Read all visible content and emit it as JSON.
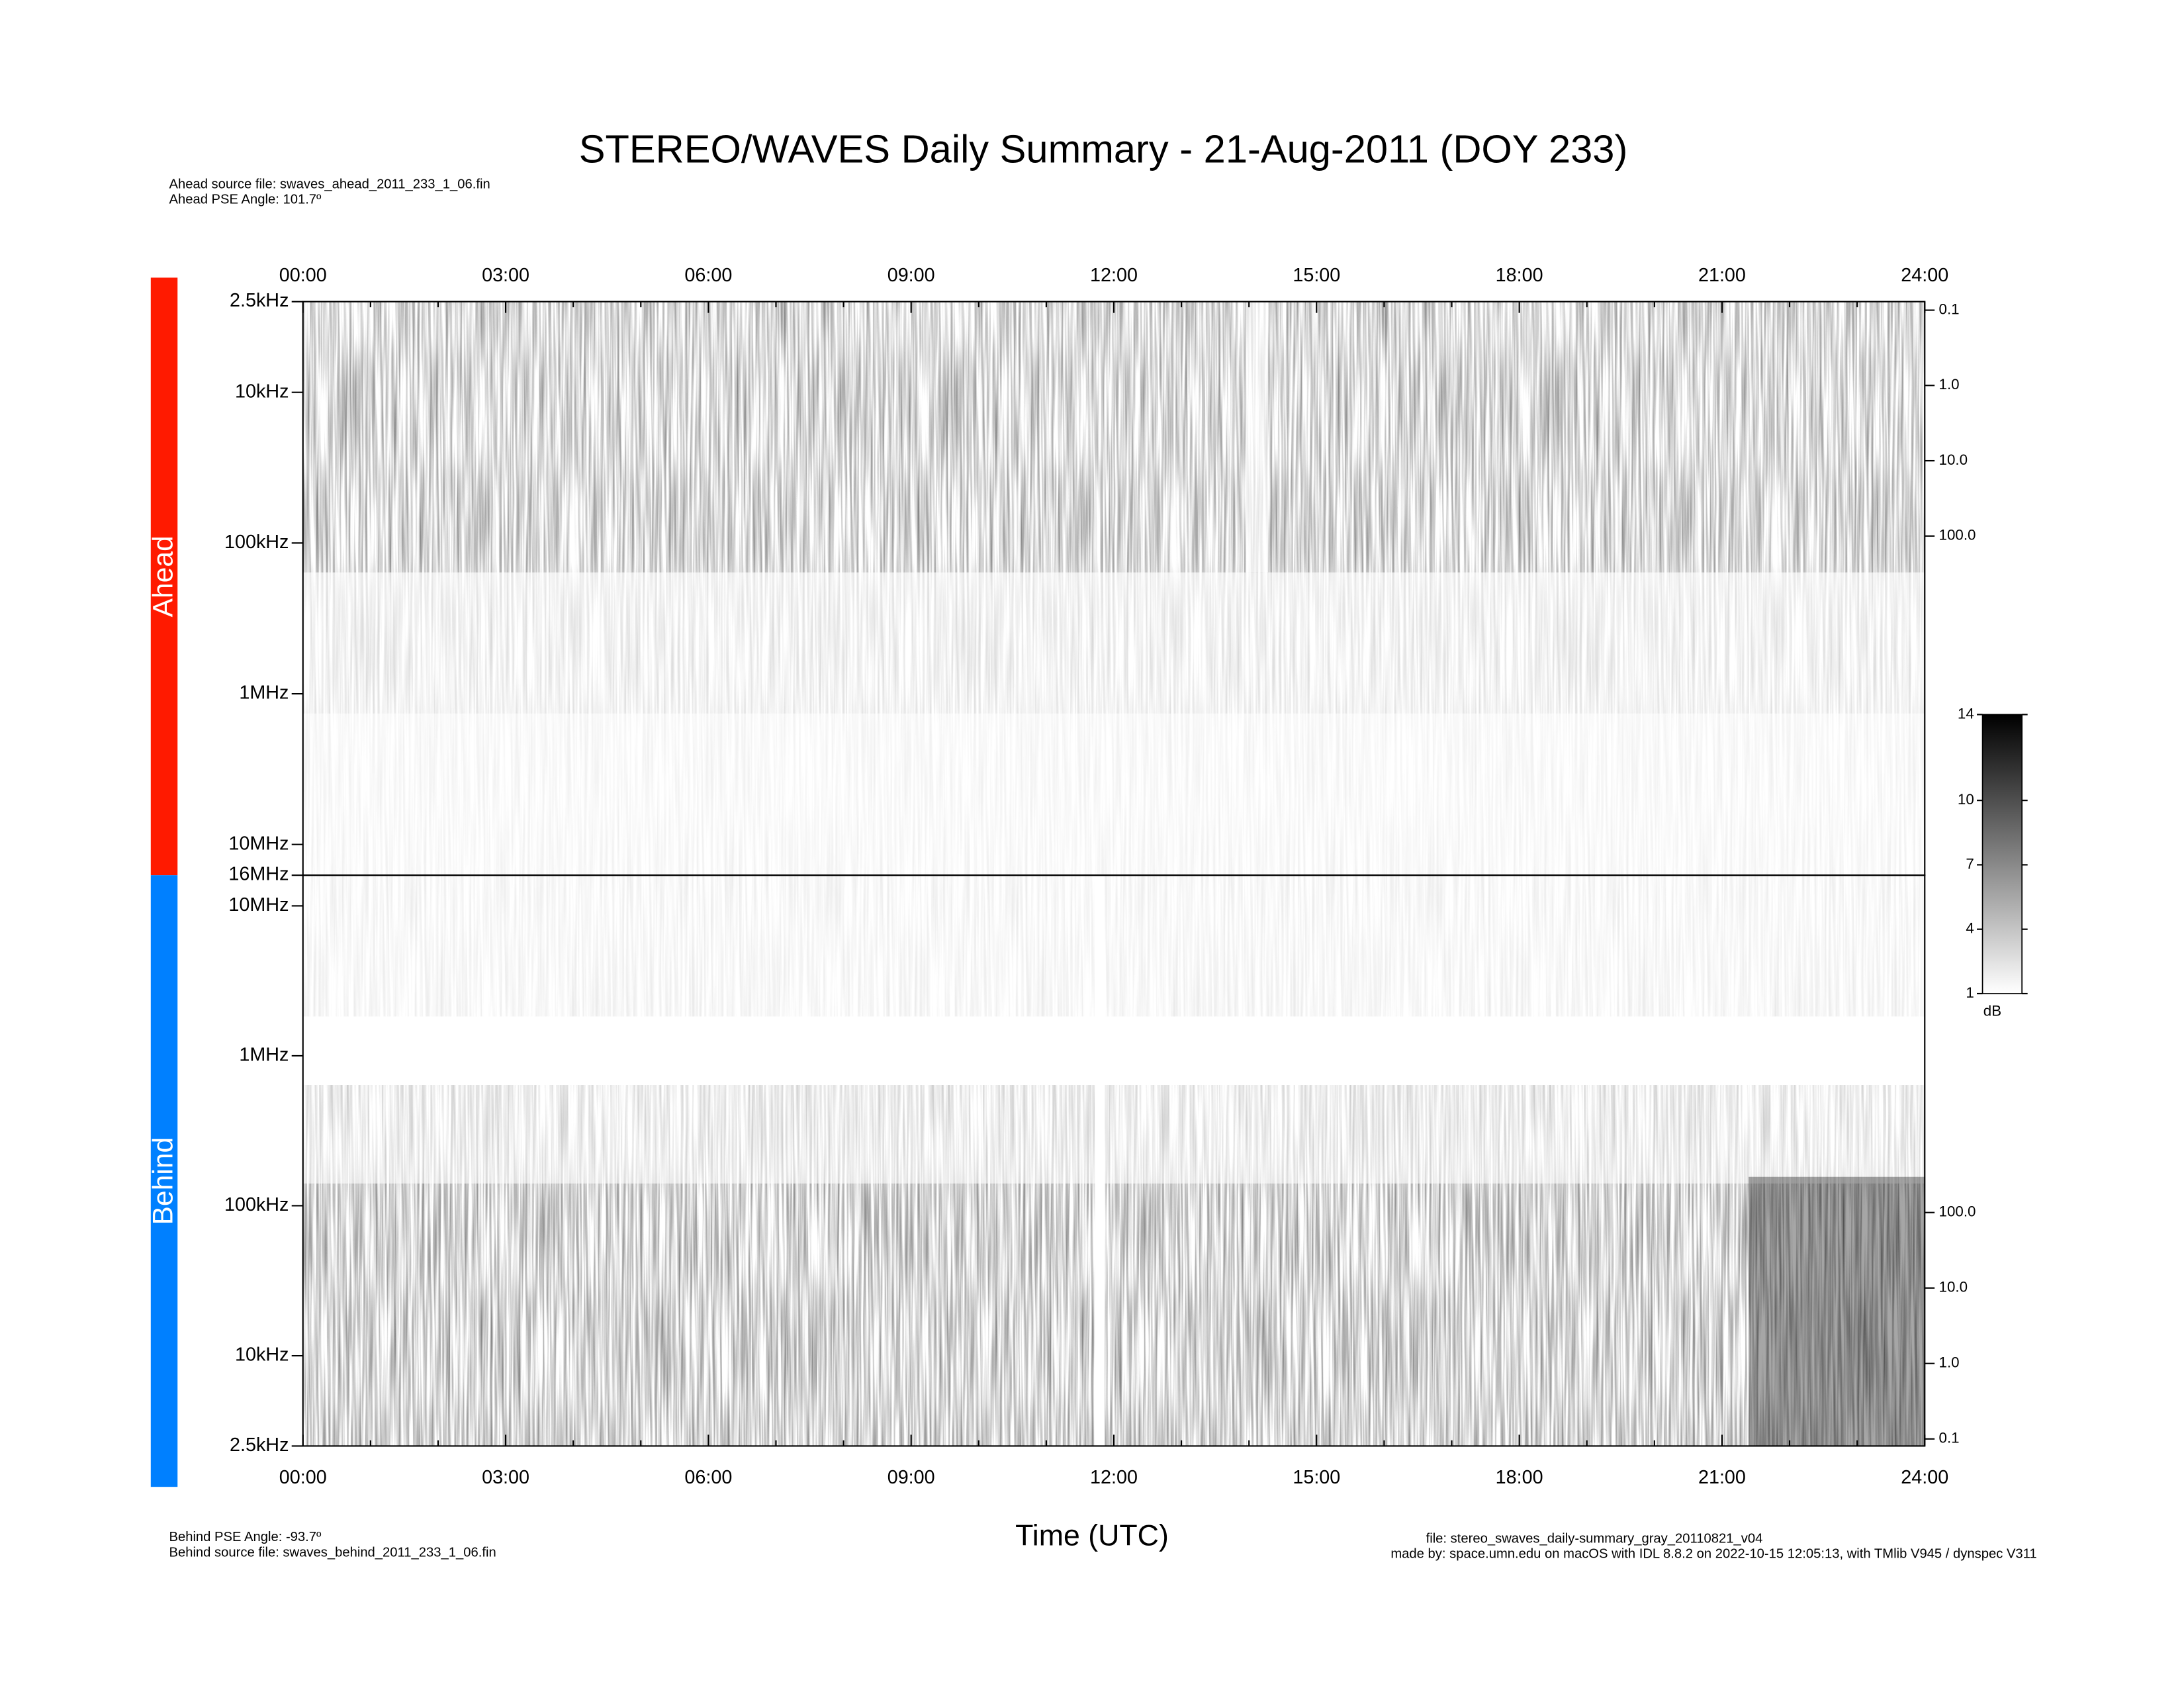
{
  "chart_data": {
    "type": "spectrogram",
    "title": "STEREO/WAVES Daily Summary - 21-Aug-2011 (DOY 233)",
    "ahead_source": "Ahead source file: swaves_ahead_2011_233_1_06.fin",
    "ahead_angle": "Ahead PSE Angle:  101.7º",
    "behind_angle": "Behind PSE Angle:  -93.7º",
    "behind_source": "Behind source file: swaves_behind_2011_233_1_06.fin",
    "xlabel": "Time (UTC)",
    "file_note": "file: stereo_swaves_daily-summary_gray_20110821_v04",
    "made_by": "made by: space.umn.edu on macOS with IDL 8.8.2 on 2022-10-15 12:05:13, with TMlib V945 / dynspec V311",
    "xlim": [
      0,
      24
    ],
    "xticks": [
      {
        "value": 0,
        "label": "00:00"
      },
      {
        "value": 3,
        "label": "03:00"
      },
      {
        "value": 6,
        "label": "06:00"
      },
      {
        "value": 9,
        "label": "09:00"
      },
      {
        "value": 12,
        "label": "12:00"
      },
      {
        "value": 15,
        "label": "15:00"
      },
      {
        "value": 18,
        "label": "18:00"
      },
      {
        "value": 21,
        "label": "21:00"
      },
      {
        "value": 24,
        "label": "24:00"
      }
    ],
    "xminor_ticks": [
      1,
      2,
      4,
      5,
      7,
      8,
      10,
      11,
      13,
      14,
      16,
      17,
      19,
      20,
      22,
      23
    ],
    "log_y": true,
    "panels": [
      {
        "name": "Ahead",
        "color": "#ff1a00",
        "ylim": [
          2.5,
          16000
        ],
        "yticks": [
          {
            "value": 2.5,
            "label": "2.5kHz"
          },
          {
            "value": 10,
            "label": "10kHz"
          },
          {
            "value": 100,
            "label": "100kHz"
          },
          {
            "value": 1000,
            "label": "1MHz"
          },
          {
            "value": 10000,
            "label": "10MHz"
          },
          {
            "value": 16000,
            "label": "16MHz"
          }
        ],
        "y2lim": [
          0.077,
          3200000
        ],
        "y2ticks": [
          0.1,
          {
            "value": 1,
            "label": "1.0"
          },
          {
            "value": 10,
            "label": "10.0"
          },
          {
            "value": 100,
            "label": "100.0"
          }
        ]
      },
      {
        "name": "Behind",
        "color": "#0080ff",
        "ylim": [
          16000,
          2.5
        ],
        "yticks": [
          {
            "value": 2.5,
            "label": "2.5kHz"
          },
          {
            "value": 10,
            "label": "10kHz"
          },
          {
            "value": 100,
            "label": "100kHz"
          },
          {
            "value": 1000,
            "label": "1MHz"
          },
          {
            "value": 10000,
            "label": "10MHz"
          }
        ],
        "y2lim": [
          2950000,
          0.0806
        ],
        "y2ticks": [
          0.1,
          {
            "value": 1,
            "label": "1.0"
          },
          {
            "value": 10,
            "label": "10.0"
          },
          {
            "value": 100,
            "label": "100.0"
          }
        ]
      }
    ],
    "colorbar": {
      "label": "dB",
      "lim": [
        1,
        14
      ],
      "ticks": [
        1,
        4,
        7,
        10,
        14
      ]
    }
  }
}
